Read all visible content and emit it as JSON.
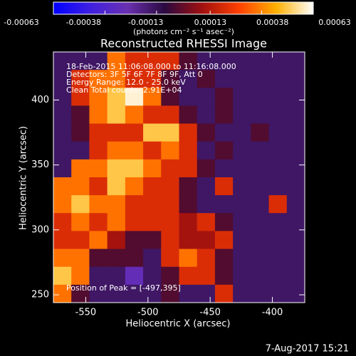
{
  "chart_data": {
    "type": "heatmap",
    "title": "Reconstructed RHESSI Image",
    "colorbar_label": "(photons cm⁻² s⁻¹ asec⁻²)",
    "x_label": "Heliocentric X (arcsec)",
    "y_label": "Heliocentric Y (arcsec)",
    "annotations": [
      "18-Feb-2015 11:06:08.000 to 11:16:08.000",
      "Detectors: 3F 5F 6F 7F 8F 9F, Att 0",
      "Energy Range: 12.0 - 25.0 keV",
      "Clean     Total counts: 2.91E+04"
    ],
    "peak_label": "Position of Peak = [-497,395]",
    "timestamp": "7-Aug-2017 15:21",
    "xlim": [
      -576,
      -374
    ],
    "ylim": [
      244,
      437
    ],
    "xticks": [
      -550,
      -500,
      -450,
      -400
    ],
    "yticks": [
      250,
      300,
      350,
      400
    ],
    "zlim": [
      -0.00063,
      0.00063
    ],
    "colorbar_ticks": [
      -0.00063,
      -0.00038,
      -0.00013,
      0.00013,
      0.00038,
      0.00063
    ],
    "colorscale": [
      "#0000ff",
      "#4020e0",
      "#6a30b0",
      "#2a0a40",
      "#a01010",
      "#ff4000",
      "#ffb000",
      "#ffffff"
    ],
    "z": [
      [
        -0.00015,
        -0.00015,
        -0.00015,
        0.00035,
        0.0002,
        0.0002,
        0.0002,
        -3e-05,
        -0.00015,
        -0.00015,
        -0.00015,
        -0.00015,
        -0.00015,
        -0.00015
      ],
      [
        -0.00015,
        0.0002,
        0.00035,
        0.00035,
        0.0002,
        0.0002,
        -3e-05,
        -0.00015,
        -3e-05,
        -0.00015,
        -0.00015,
        -0.00015,
        -0.00015,
        -0.00015
      ],
      [
        -0.00015,
        0.0002,
        0.00035,
        0.0005,
        0.0006,
        0.00035,
        -3e-05,
        -0.00015,
        -0.00015,
        -3e-05,
        -0.00015,
        -0.00015,
        -0.00015,
        -0.00015
      ],
      [
        -0.00015,
        -3e-05,
        0.00035,
        0.0005,
        0.00035,
        0.0002,
        0.0002,
        -3e-05,
        -0.00015,
        -3e-05,
        -0.00015,
        -0.00015,
        -0.00015,
        -0.00015
      ],
      [
        -0.00015,
        -3e-05,
        0.0002,
        0.0002,
        0.0002,
        0.0005,
        0.0005,
        0.0002,
        -3e-05,
        -0.00015,
        -0.00015,
        -3e-05,
        -0.00015,
        -0.00015
      ],
      [
        -0.00015,
        -0.00015,
        0.0002,
        0.00035,
        0.00035,
        0.0002,
        0.00035,
        0.0002,
        -0.00015,
        -3e-05,
        -0.00015,
        -0.00015,
        -0.00015,
        -0.00015
      ],
      [
        -0.00015,
        0.00035,
        0.00035,
        0.0005,
        0.0005,
        0.00035,
        0.0002,
        0.0002,
        -3e-05,
        -0.00015,
        -0.00015,
        -0.00015,
        -0.00015,
        -0.00015
      ],
      [
        0.00035,
        0.00035,
        0.0002,
        0.0005,
        0.00035,
        0.0002,
        0.0002,
        -3e-05,
        -0.00015,
        0.0002,
        -0.00015,
        -0.00015,
        -0.00015,
        -0.00015
      ],
      [
        0.00035,
        0.0005,
        0.00035,
        0.00035,
        0.0002,
        0.0002,
        0.0002,
        -3e-05,
        -0.00015,
        -0.00015,
        -0.00015,
        -0.00015,
        0.0002,
        -0.00015
      ],
      [
        0.0002,
        0.00035,
        0.0002,
        0.00035,
        0.0002,
        0.0002,
        0.0002,
        0.0001,
        0.0002,
        -3e-05,
        -0.00015,
        -0.00015,
        -0.00015,
        -0.00015
      ],
      [
        0.0002,
        0.0002,
        0.00035,
        0.0001,
        -3e-05,
        -3e-05,
        0.0002,
        0.0001,
        0.0001,
        0.0002,
        -0.00015,
        -0.00015,
        -0.00015,
        -0.00015
      ],
      [
        0.00035,
        0.00035,
        -3e-05,
        -3e-05,
        -3e-05,
        -0.00015,
        0.0002,
        0.00035,
        0.0002,
        -3e-05,
        -0.00015,
        -0.00015,
        -0.00015,
        -0.00015
      ],
      [
        0.0005,
        0.00035,
        -0.00015,
        -0.00015,
        -0.0003,
        -0.00015,
        -3e-05,
        0.0002,
        0.0002,
        -3e-05,
        -0.00015,
        -0.00015,
        -0.00015,
        -0.00015
      ],
      [
        0.00035,
        -3e-05,
        -0.00015,
        -0.00015,
        -0.00015,
        -0.00015,
        -3e-05,
        -0.00015,
        -0.00015,
        0.0002,
        -0.00015,
        -0.00015,
        -0.00015,
        -0.00015
      ]
    ]
  }
}
